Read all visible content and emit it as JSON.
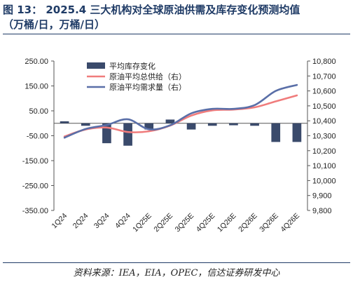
{
  "header": {
    "title_line1": "图 13：  2025.4 三大机构对全球原油供需及库存变化预测均值",
    "title_line2": "（万桶/日，万桶/日）"
  },
  "footer": {
    "source": "资料来源：IEA，EIA，OPEC，信达证券研发中心"
  },
  "colors": {
    "bar": "#3a4a6b",
    "supply": "#f07c7c",
    "demand": "#5a6fa8",
    "title": "#1f3b66"
  },
  "chart_data": {
    "type": "bar+line",
    "categories": [
      "1Q24",
      "2Q24",
      "3Q24",
      "4Q24",
      "1Q25E",
      "2Q25E",
      "3Q25E",
      "4Q25E",
      "1Q26E",
      "2Q26E",
      "3Q26E",
      "4Q26E"
    ],
    "legend": [
      "平均库存变化",
      "原油平均总供给（右）",
      "原油平均需求量（右）"
    ],
    "left_axis": {
      "ylim": [
        -350,
        250
      ],
      "ticks": [
        "250.00",
        "150.00",
        "50.00",
        "-50.00",
        "-150.00",
        "-250.00",
        "-350.00"
      ]
    },
    "right_axis": {
      "ylim": [
        9800,
        10800
      ],
      "ticks": [
        "10,800",
        "10,700",
        "10,600",
        "10,500",
        "10,400",
        "10,300",
        "10,200",
        "10,100",
        "10,000",
        "9,900",
        "9,800"
      ]
    },
    "series": [
      {
        "name": "平均库存变化",
        "axis": "left",
        "type": "bar",
        "values": [
          8,
          -10,
          -80,
          -90,
          -25,
          15,
          -25,
          -10,
          -8,
          -10,
          -75,
          -75
        ]
      },
      {
        "name": "原油平均总供给（右）",
        "axis": "right",
        "type": "line",
        "values": [
          10295,
          10342,
          10355,
          10325,
          10330,
          10368,
          10435,
          10470,
          10475,
          10490,
          10530,
          10570
        ]
      },
      {
        "name": "原油平均需求量（右）",
        "axis": "right",
        "type": "line",
        "values": [
          10287,
          10345,
          10372,
          10410,
          10343,
          10370,
          10450,
          10480,
          10480,
          10505,
          10600,
          10640
        ]
      }
    ]
  }
}
